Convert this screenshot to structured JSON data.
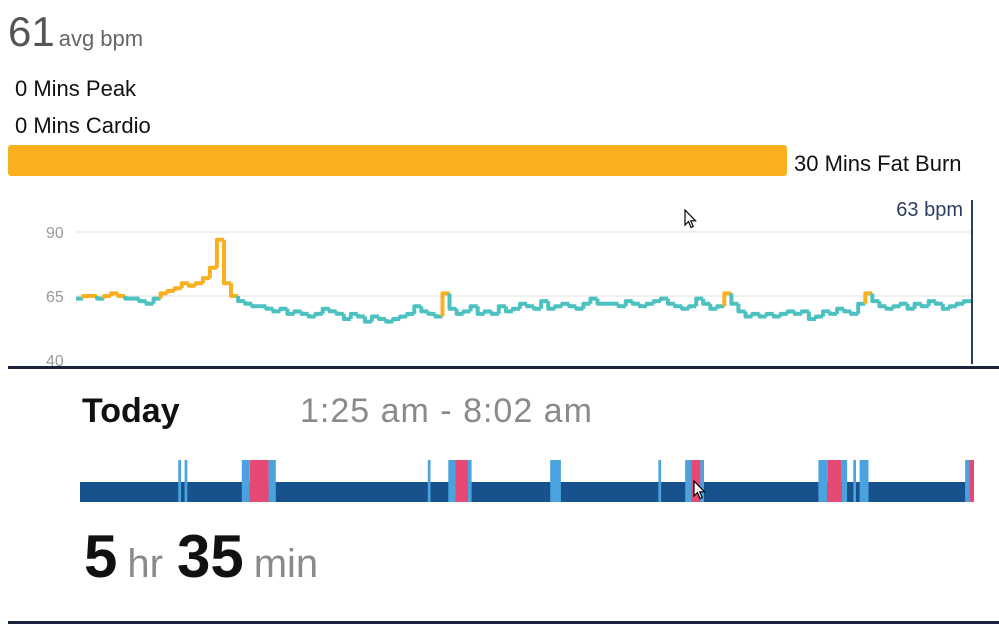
{
  "summary": {
    "avg_value": "61",
    "avg_unit": "avg bpm",
    "peak_label": "0 Mins Peak",
    "cardio_label": "0 Mins Cardio",
    "fat_burn_label": "30 Mins Fat Burn",
    "fat_burn_fraction": 0.78
  },
  "colors": {
    "fat_burn": "#f9b020",
    "resting": "#4cc2c0",
    "sleep_deep": "#17528d",
    "sleep_light": "#4aa3df",
    "sleep_awake": "#e64a74"
  },
  "heart_chart": {
    "current_label": "63 bpm",
    "ticks": [
      "90",
      "65",
      "40"
    ]
  },
  "chart_data": {
    "type": "line",
    "ylim": [
      40,
      90
    ],
    "yticks": [
      90,
      65,
      40
    ],
    "fat_burn_threshold": 64,
    "series": [
      {
        "values": [
          64,
          65,
          65,
          64,
          65,
          66,
          65,
          64,
          64,
          63,
          62,
          64,
          66,
          67,
          68,
          70,
          69,
          70,
          72,
          76,
          87,
          70,
          65,
          63,
          62,
          61,
          61,
          60,
          59,
          60,
          58,
          59,
          58,
          57,
          58,
          60,
          59,
          58,
          56,
          58,
          57,
          55,
          57,
          56,
          55,
          56,
          57,
          58,
          61,
          59,
          58,
          57,
          66,
          60,
          58,
          59,
          61,
          58,
          59,
          58,
          61,
          59,
          60,
          62,
          61,
          60,
          63,
          60,
          61,
          62,
          61,
          60,
          62,
          64,
          62,
          62,
          62,
          61,
          63,
          62,
          61,
          62,
          63,
          64,
          62,
          61,
          60,
          61,
          64,
          62,
          60,
          61,
          66,
          62,
          59,
          57,
          58,
          57,
          58,
          57,
          58,
          59,
          58,
          59,
          56,
          57,
          59,
          58,
          60,
          59,
          58,
          62,
          66,
          63,
          61,
          60,
          61,
          62,
          60,
          62,
          61,
          63,
          62,
          60,
          61,
          62,
          63
        ]
      }
    ]
  },
  "sleep": {
    "title": "Today",
    "time_range": "1:25 am - 8:02 am",
    "hours": "5",
    "hours_unit": "hr",
    "minutes": "35",
    "minutes_unit": "min",
    "events": [
      {
        "type": "light",
        "start": 0.11,
        "end": 0.113
      },
      {
        "type": "light",
        "start": 0.117,
        "end": 0.12
      },
      {
        "type": "light",
        "start": 0.181,
        "end": 0.19
      },
      {
        "type": "awake",
        "start": 0.19,
        "end": 0.211
      },
      {
        "type": "light",
        "start": 0.211,
        "end": 0.219
      },
      {
        "type": "light",
        "start": 0.389,
        "end": 0.392
      },
      {
        "type": "light",
        "start": 0.412,
        "end": 0.42
      },
      {
        "type": "awake",
        "start": 0.42,
        "end": 0.434
      },
      {
        "type": "light",
        "start": 0.434,
        "end": 0.438
      },
      {
        "type": "light",
        "start": 0.526,
        "end": 0.538
      },
      {
        "type": "light",
        "start": 0.647,
        "end": 0.65
      },
      {
        "type": "light",
        "start": 0.677,
        "end": 0.684
      },
      {
        "type": "awake",
        "start": 0.684,
        "end": 0.694
      },
      {
        "type": "light",
        "start": 0.694,
        "end": 0.698
      },
      {
        "type": "light",
        "start": 0.826,
        "end": 0.836
      },
      {
        "type": "awake",
        "start": 0.836,
        "end": 0.852
      },
      {
        "type": "light",
        "start": 0.852,
        "end": 0.858
      },
      {
        "type": "light",
        "start": 0.865,
        "end": 0.868
      },
      {
        "type": "light",
        "start": 0.872,
        "end": 0.882
      },
      {
        "type": "light",
        "start": 0.99,
        "end": 0.995
      },
      {
        "type": "awake",
        "start": 0.995,
        "end": 1.0
      }
    ]
  }
}
